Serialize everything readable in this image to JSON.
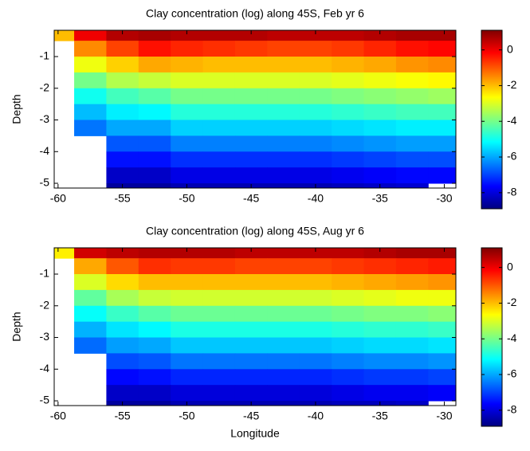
{
  "chart_data": [
    {
      "type": "heatmap",
      "title": "Clay concentration (log) along 45S, Feb yr 6",
      "ylabel": "Depth",
      "x": [
        -60,
        -57.5,
        -55,
        -52.5,
        -50,
        -47.5,
        -45,
        -42.5,
        -40,
        -37.5,
        -35,
        -32.5,
        -30
      ],
      "y": [
        -0.25,
        -0.75,
        -1.25,
        -1.75,
        -2.25,
        -2.75,
        -3.25,
        -3.75,
        -4.25,
        -4.75,
        -5.25,
        -5.75
      ],
      "values": [
        [
          -2,
          0,
          0.6,
          0.7,
          0.6,
          0.6,
          0.6,
          0.5,
          0.5,
          0.5,
          0.6,
          0.7,
          0.7
        ],
        [
          null,
          -1.5,
          -0.8,
          -0.3,
          -0.5,
          -0.6,
          -0.7,
          -0.8,
          -0.8,
          -0.7,
          -0.5,
          -0.3,
          -0.2
        ],
        [
          null,
          -2.8,
          -2.2,
          -1.8,
          -1.9,
          -2.0,
          -2.0,
          -2.0,
          -2.0,
          -1.9,
          -1.8,
          -1.6,
          -1.5
        ],
        [
          null,
          -4.0,
          -3.4,
          -3.2,
          -3.0,
          -3.0,
          -3.0,
          -3.0,
          -3.0,
          -2.9,
          -2.8,
          -2.7,
          -2.6
        ],
        [
          null,
          -5.0,
          -4.5,
          -4.3,
          -4.0,
          -4.0,
          -4.0,
          -4.0,
          -4.0,
          -3.9,
          -3.8,
          -3.7,
          -3.6
        ],
        [
          null,
          -5.8,
          -5.3,
          -5.2,
          -4.8,
          -4.8,
          -4.8,
          -4.8,
          -4.8,
          -4.7,
          -4.6,
          -4.5,
          -4.5
        ],
        [
          null,
          -6.5,
          -6.0,
          -6.0,
          -5.6,
          -5.6,
          -5.6,
          -5.6,
          -5.6,
          -5.5,
          -5.4,
          -5.3,
          -5.3
        ],
        [
          null,
          null,
          -6.8,
          -6.8,
          -6.4,
          -6.4,
          -6.4,
          -6.4,
          -6.4,
          -6.3,
          -6.2,
          -6.1,
          -6.1
        ],
        [
          null,
          null,
          -7.5,
          -7.5,
          -7.2,
          -7.2,
          -7.2,
          -7.2,
          -7.2,
          -7.1,
          -7.0,
          -6.9,
          -6.9
        ],
        [
          null,
          null,
          -8.2,
          -8.2,
          -7.9,
          -7.9,
          -7.9,
          -7.9,
          -7.9,
          -7.8,
          -7.7,
          -7.6,
          -7.6
        ],
        [
          null,
          null,
          -8.6,
          -8.6,
          -8.4,
          -8.4,
          -8.4,
          -8.4,
          -8.4,
          -8.3,
          -8.2,
          -8.1,
          null
        ],
        [
          null,
          null,
          null,
          -8.8,
          null,
          null,
          null,
          null,
          null,
          null,
          null,
          null,
          null
        ]
      ],
      "xlim": [
        -60.3,
        -29.1
      ],
      "ylim": [
        -5.15,
        -0.17
      ],
      "xticks": [
        -60,
        -55,
        -50,
        -45,
        -40,
        -35,
        -30
      ],
      "yticks": [
        -5,
        -4,
        -3,
        -2,
        -1
      ],
      "clim": [
        -8.9,
        1.1
      ],
      "cticks": [
        0,
        -2,
        -4,
        -6,
        -8
      ]
    },
    {
      "type": "heatmap",
      "title": "Clay concentration (log) along 45S, Aug yr 6",
      "ylabel": "Depth",
      "xlabel": "Longitude",
      "x": [
        -60,
        -57.5,
        -55,
        -52.5,
        -50,
        -47.5,
        -45,
        -42.5,
        -40,
        -37.5,
        -35,
        -32.5,
        -30
      ],
      "y": [
        -0.25,
        -0.75,
        -1.25,
        -1.75,
        -2.25,
        -2.75,
        -3.25,
        -3.75,
        -4.25,
        -4.75,
        -5.25,
        -5.75
      ],
      "values": [
        [
          -2.5,
          0.3,
          0.5,
          0.6,
          0.6,
          0.6,
          0.5,
          0.5,
          0.5,
          0.5,
          0.6,
          0.7,
          0.7
        ],
        [
          null,
          -1.8,
          -1.0,
          -0.6,
          -0.7,
          -0.7,
          -0.8,
          -0.8,
          -0.8,
          -0.7,
          -0.6,
          -0.5,
          -0.4
        ],
        [
          null,
          -3.0,
          -2.3,
          -2.0,
          -2.0,
          -2.0,
          -2.0,
          -2.0,
          -2.0,
          -1.9,
          -1.8,
          -1.7,
          -1.6
        ],
        [
          null,
          -4.2,
          -3.5,
          -3.2,
          -3.1,
          -3.1,
          -3.1,
          -3.1,
          -3.1,
          -3.0,
          -2.9,
          -2.8,
          -2.8
        ],
        [
          null,
          -5.1,
          -4.6,
          -4.3,
          -4.1,
          -4.1,
          -4.1,
          -4.1,
          -4.1,
          -4.0,
          -3.9,
          -3.9,
          -3.8
        ],
        [
          null,
          -5.9,
          -5.4,
          -5.2,
          -4.9,
          -4.9,
          -4.9,
          -4.9,
          -4.9,
          -4.8,
          -4.7,
          -4.7,
          -4.6
        ],
        [
          null,
          -6.6,
          -6.1,
          -6.0,
          -5.7,
          -5.7,
          -5.7,
          -5.7,
          -5.7,
          -5.6,
          -5.5,
          -5.5,
          -5.4
        ],
        [
          null,
          null,
          -6.9,
          -6.8,
          -6.5,
          -6.5,
          -6.5,
          -6.5,
          -6.5,
          -6.4,
          -6.3,
          -6.3,
          -6.2
        ],
        [
          null,
          null,
          -7.6,
          -7.5,
          -7.3,
          -7.3,
          -7.3,
          -7.3,
          -7.3,
          -7.2,
          -7.1,
          -7.1,
          -7.0
        ],
        [
          null,
          null,
          -8.2,
          -8.2,
          -8.0,
          -8.0,
          -8.0,
          -8.0,
          -8.0,
          -7.9,
          -7.8,
          -7.8,
          -7.7
        ],
        [
          null,
          null,
          -8.6,
          -8.6,
          -8.4,
          -8.4,
          -8.4,
          -8.4,
          -8.4,
          -8.3,
          -8.3,
          -8.2,
          null
        ],
        [
          null,
          null,
          null,
          -8.8,
          null,
          null,
          null,
          null,
          null,
          null,
          null,
          null,
          null
        ]
      ],
      "xlim": [
        -60.3,
        -29.1
      ],
      "ylim": [
        -5.15,
        -0.17
      ],
      "xticks": [
        -60,
        -55,
        -50,
        -45,
        -40,
        -35,
        -30
      ],
      "yticks": [
        -5,
        -4,
        -3,
        -2,
        -1
      ],
      "clim": [
        -8.9,
        1.1
      ],
      "cticks": [
        0,
        -2,
        -4,
        -6,
        -8
      ]
    }
  ]
}
